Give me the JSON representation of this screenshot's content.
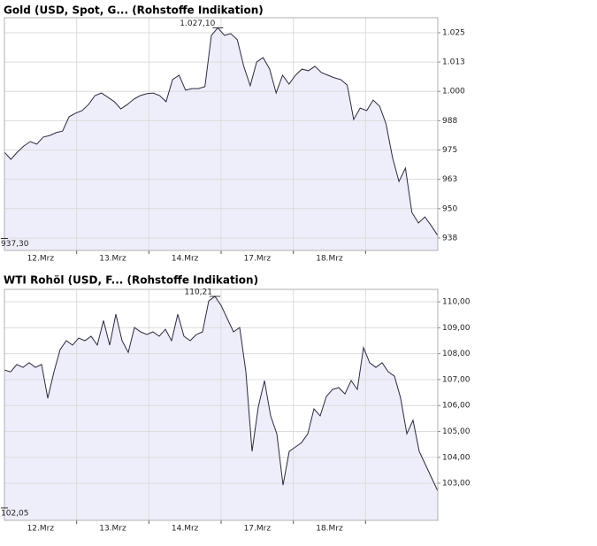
{
  "chart_data": [
    {
      "type": "line",
      "title": "Gold (USD, Spot, G... (Rohstoffe Indikation)",
      "color": "#2a2a40",
      "fill": "#eeeefa",
      "values": [
        974.1,
        971.0,
        974.1,
        976.7,
        978.6,
        977.5,
        980.5,
        981.2,
        982.4,
        983.1,
        989.2,
        990.7,
        991.8,
        994.4,
        998.2,
        999.3,
        997.5,
        995.6,
        992.5,
        994.4,
        996.7,
        998.2,
        999.0,
        999.3,
        998.2,
        995.6,
        1005.0,
        1006.9,
        1000.5,
        1001.2,
        1001.2,
        1002.0,
        1023.9,
        1027.1,
        1023.9,
        1024.6,
        1022.0,
        1010.7,
        1002.4,
        1012.5,
        1014.4,
        1009.5,
        999.3,
        1006.9,
        1003.1,
        1006.9,
        1009.5,
        1008.8,
        1010.7,
        1008.0,
        1006.9,
        1005.8,
        1005.0,
        1002.7,
        988.0,
        992.9,
        991.8,
        996.3,
        993.7,
        986.1,
        971.8,
        961.6,
        967.3,
        948.4,
        943.9,
        946.5,
        942.7,
        938.5
      ],
      "ylim": [
        932.2,
        1031.4
      ],
      "yticks": [
        {
          "value": 1025,
          "label": "1.025"
        },
        {
          "value": 1012.5,
          "label": "1.013"
        },
        {
          "value": 1000,
          "label": "1.000"
        },
        {
          "value": 987.5,
          "label": "988"
        },
        {
          "value": 975,
          "label": "975"
        },
        {
          "value": 962.5,
          "label": "963"
        },
        {
          "value": 950,
          "label": "950"
        },
        {
          "value": 937.5,
          "label": "938"
        }
      ],
      "xlim": [
        0,
        6
      ],
      "xticks": [
        {
          "value": 0.5,
          "label": "12.Mrz"
        },
        {
          "value": 1.5,
          "label": "13.Mrz"
        },
        {
          "value": 2.5,
          "label": "14.Mrz"
        },
        {
          "value": 3.5,
          "label": "17.Mrz"
        },
        {
          "value": 4.5,
          "label": "18.Mrz"
        }
      ],
      "xgrid": [
        1,
        2,
        3,
        4,
        5
      ],
      "max_label": {
        "value": 1027.1,
        "label": "1.027,10"
      },
      "min_label": {
        "value": 937.3,
        "label": "937,30"
      },
      "grid": true
    },
    {
      "type": "line",
      "title": "WTI Rohöl (USD, F... (Rohstoffe Indikation)",
      "color": "#2a2a40",
      "fill": "#eeeefa",
      "values": [
        107.37,
        107.3,
        107.58,
        107.47,
        107.65,
        107.47,
        107.58,
        106.28,
        107.3,
        108.16,
        108.5,
        108.33,
        108.6,
        108.5,
        108.67,
        108.33,
        109.28,
        108.33,
        109.52,
        108.5,
        108.05,
        109.01,
        108.84,
        108.74,
        108.84,
        108.67,
        108.94,
        108.5,
        109.52,
        108.67,
        108.5,
        108.74,
        108.84,
        110.03,
        110.21,
        109.86,
        109.35,
        108.84,
        109.01,
        107.3,
        104.23,
        105.94,
        106.96,
        105.6,
        104.91,
        102.93,
        104.23,
        104.4,
        104.57,
        104.91,
        105.87,
        105.6,
        106.35,
        106.62,
        106.69,
        106.45,
        106.96,
        106.62,
        108.23,
        107.65,
        107.47,
        107.65,
        107.3,
        107.13,
        106.28,
        104.91,
        105.43,
        104.23,
        103.72,
        103.21,
        102.7
      ],
      "ylim": [
        101.57,
        110.48
      ],
      "yticks": [
        {
          "value": 110,
          "label": "110,00"
        },
        {
          "value": 109,
          "label": "109,00"
        },
        {
          "value": 108,
          "label": "108,00"
        },
        {
          "value": 107,
          "label": "107,00"
        },
        {
          "value": 106,
          "label": "106,00"
        },
        {
          "value": 105,
          "label": "105,00"
        },
        {
          "value": 104,
          "label": "104,00"
        },
        {
          "value": 103,
          "label": "103,00"
        }
      ],
      "xlim": [
        0,
        6
      ],
      "xticks": [
        {
          "value": 0.5,
          "label": "12.Mrz"
        },
        {
          "value": 1.5,
          "label": "13.Mrz"
        },
        {
          "value": 2.5,
          "label": "14.Mrz"
        },
        {
          "value": 3.5,
          "label": "17.Mrz"
        },
        {
          "value": 4.5,
          "label": "18.Mrz"
        }
      ],
      "xgrid": [
        1,
        2,
        3,
        4,
        5
      ],
      "max_label": {
        "value": 110.21,
        "label": "110,21"
      },
      "min_label": {
        "value": 102.05,
        "label": "102,05"
      },
      "grid": true
    }
  ]
}
